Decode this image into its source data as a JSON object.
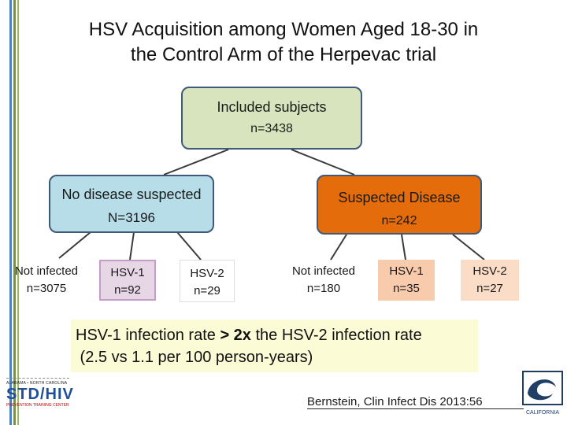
{
  "title": {
    "line1": "HSV Acquisition among Women Aged 18-30 in",
    "line2": "the Control Arm of the Herpevac trial"
  },
  "colors": {
    "bar_blue": "#4f81bd",
    "bar_green": "#77933c",
    "root_fill": "#d7e4bd",
    "no_disease_fill": "#b7dde8",
    "suspected_fill": "#e46c0a",
    "hsv_fill": "#e6d6e6",
    "hsv_border": "#c79bc7",
    "callout_fill": "#fbfbd6"
  },
  "nodes": {
    "root": {
      "label": "Included subjects",
      "count": "n=3438"
    },
    "no_disease": {
      "label": "No disease suspected",
      "count": "N=3196"
    },
    "suspected": {
      "label": "Suspected Disease",
      "count": "n=242"
    },
    "nd_not_infected": {
      "label": "Not infected",
      "count": "n=3075"
    },
    "nd_hsv1": {
      "label": "HSV-1",
      "count": "n=92"
    },
    "nd_hsv2": {
      "label": "HSV-2",
      "count": "n=29"
    },
    "sd_not_infected": {
      "label": "Not infected",
      "count": "n=180"
    },
    "sd_hsv1": {
      "label": "HSV-1",
      "count": "n=35"
    },
    "sd_hsv2": {
      "label": "HSV-2",
      "count": "n=27"
    }
  },
  "callout": {
    "line1_a": "HSV-1 infection rate ",
    "line1_b": "> 2x",
    "line1_c": " the HSV-2 infection rate",
    "line2": " (2.5 vs 1.1 per 100 person-years)"
  },
  "citation": "Bernstein, Clin Infect Dis 2013:56",
  "logos": {
    "left_top": "ALABAMA • NORTH CAROLINA",
    "left_main": "STD/HIV",
    "left_bottom": "PREVENTION TRAINING CENTER",
    "right_text": "CALIFORNIA"
  }
}
